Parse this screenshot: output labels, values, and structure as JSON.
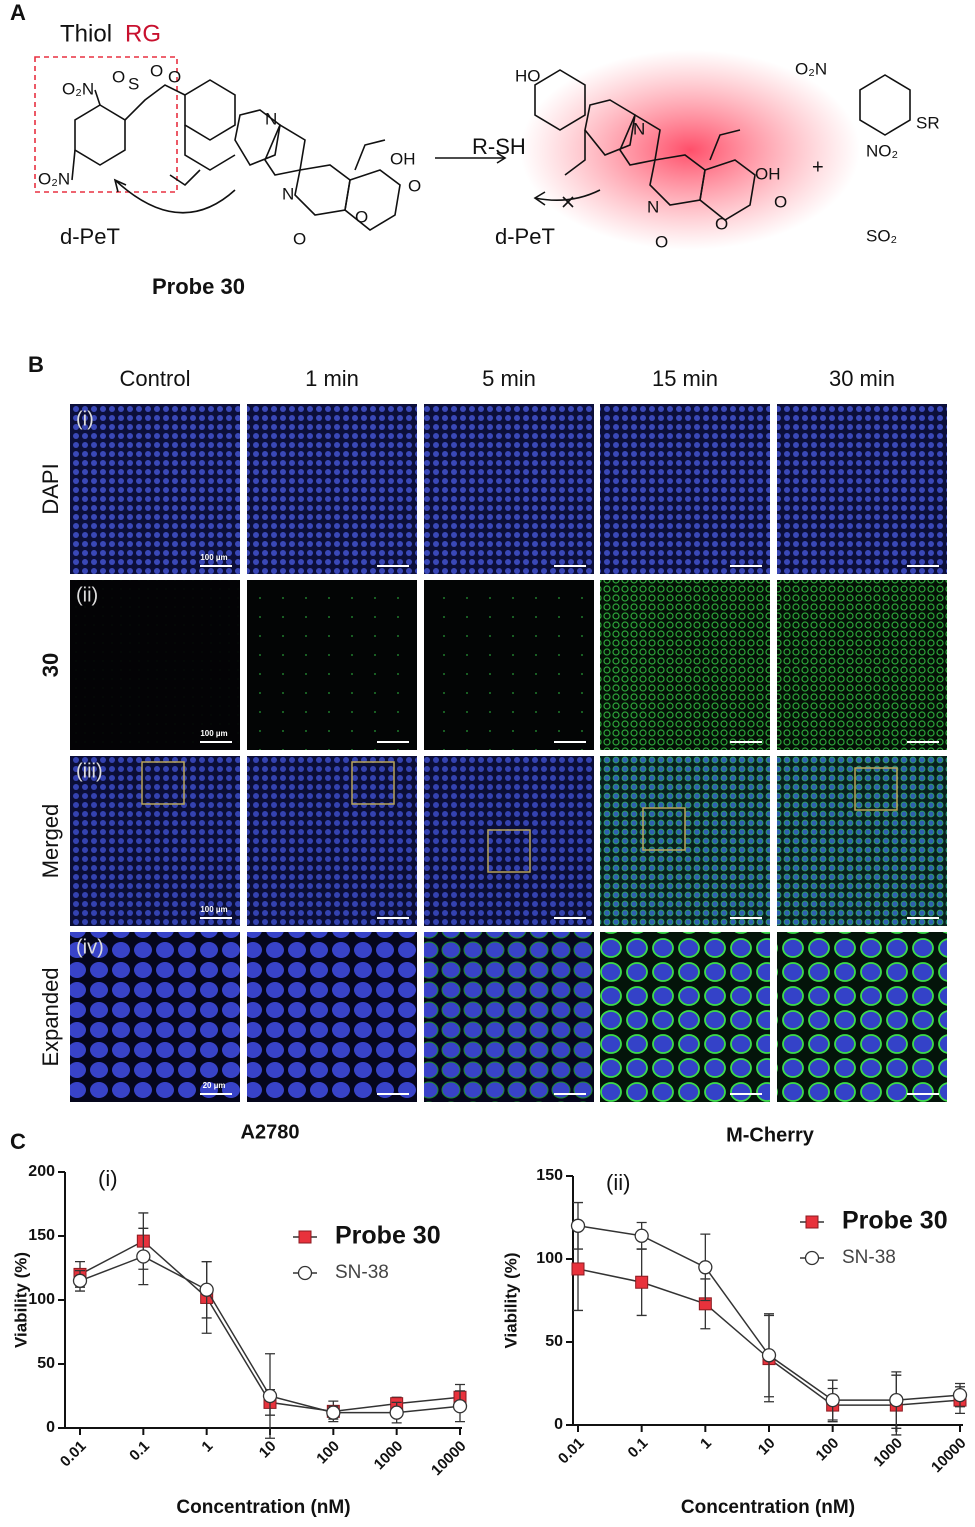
{
  "panel_a": {
    "label": "A",
    "title_black": "Thiol",
    "title_red": "RG",
    "reagent": "R-SH",
    "dpet_left": "d-PeT",
    "dpet_right": "d-PeT",
    "probe_name": "Probe 30",
    "plus": "+",
    "byproduct_so2": "SO₂",
    "atoms": [
      "O₂N",
      "S",
      "O",
      "O",
      "O",
      "O₂N",
      "N",
      "N",
      "OH",
      "O",
      "O",
      "O",
      "HO",
      "N",
      "N",
      "OH",
      "O",
      "O",
      "O",
      "O₂N",
      "SR",
      "NO₂"
    ]
  },
  "panel_b": {
    "label": "B",
    "columns": [
      "Control",
      "1 min",
      "5 min",
      "15 min",
      "30 min"
    ],
    "rows": [
      "DAPI",
      "30",
      "Merged",
      "Expanded"
    ],
    "row_numerals": [
      "(i)",
      "(ii)",
      "(iii)",
      "(iv)"
    ],
    "scale_bars": [
      "100 µm",
      "100 µm",
      "100 µm",
      "20 µm"
    ]
  },
  "panel_c_label": "C",
  "chart_data": [
    {
      "type": "line",
      "title": "A2780",
      "panel": "(i)",
      "x_label": "Concentration (nM)",
      "y_label": "Viability (%)",
      "x": [
        0.01,
        0.1,
        1,
        10,
        100,
        1000,
        10000
      ],
      "xlim": [
        0.01,
        10000
      ],
      "xticks": [
        0.01,
        0.1,
        1,
        10,
        100,
        1000,
        10000
      ],
      "x_log": true,
      "ylim": [
        0,
        200
      ],
      "yticks": [
        0,
        50,
        100,
        150,
        200
      ],
      "legend": "right",
      "series": [
        {
          "name": "Probe 30",
          "color": "#e8323c",
          "marker": "square",
          "values": [
            120,
            146,
            102,
            20,
            13,
            19,
            24
          ],
          "errors": [
            10,
            22,
            28,
            10,
            8,
            5,
            10
          ]
        },
        {
          "name": "SN-38",
          "color": "#ffffff",
          "marker": "circle",
          "values": [
            115,
            134,
            108,
            25,
            12,
            12,
            17
          ],
          "errors": [
            8,
            22,
            22,
            33,
            5,
            8,
            12
          ]
        }
      ]
    },
    {
      "type": "line",
      "title": "M-Cherry",
      "panel": "(ii)",
      "x_label": "Concentration (nM)",
      "y_label": "Viability (%)",
      "x": [
        0.01,
        0.1,
        1,
        10,
        100,
        1000,
        10000
      ],
      "xlim": [
        0.01,
        10000
      ],
      "xticks": [
        0.01,
        0.1,
        1,
        10,
        100,
        1000,
        10000
      ],
      "x_log": true,
      "ylim": [
        0,
        150
      ],
      "yticks": [
        0,
        50,
        100,
        150
      ],
      "legend": "right",
      "series": [
        {
          "name": "Probe 30",
          "color": "#e8323c",
          "marker": "square",
          "values": [
            94,
            86,
            73,
            40,
            12,
            12,
            15
          ],
          "errors": [
            25,
            20,
            15,
            26,
            10,
            18,
            8
          ]
        },
        {
          "name": "SN-38",
          "color": "#ffffff",
          "marker": "circle",
          "values": [
            120,
            114,
            95,
            42,
            15,
            15,
            18
          ],
          "errors": [
            14,
            8,
            20,
            25,
            12,
            17,
            7
          ]
        }
      ]
    }
  ]
}
